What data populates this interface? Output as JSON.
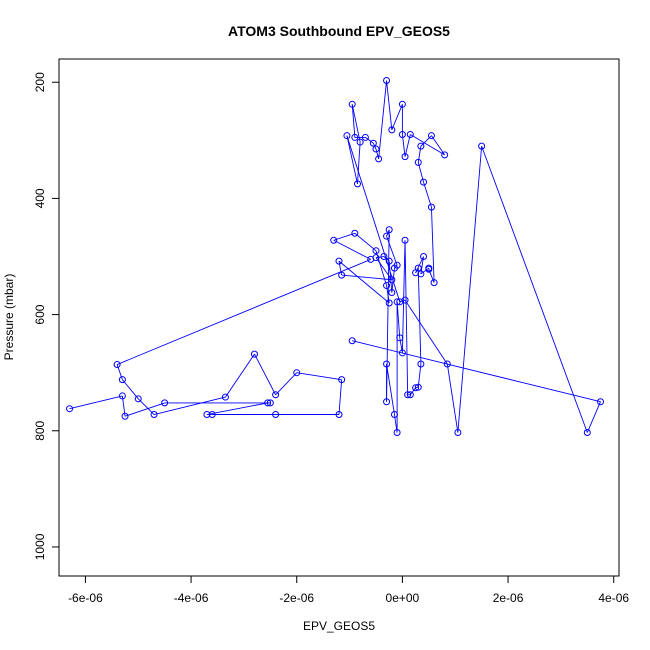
{
  "chart_data": {
    "type": "line",
    "title": "ATOM3 Southbound EPV_GEOS5",
    "xlabel": "EPV_GEOS5",
    "ylabel": "Pressure (mbar)",
    "xlim": [
      -6.5e-06,
      4.1e-06
    ],
    "ylim": [
      1050,
      160
    ],
    "y_reversed": true,
    "x_ticks": [
      -6e-06,
      -4e-06,
      -2e-06,
      0,
      2e-06,
      4e-06
    ],
    "x_tick_labels": [
      "-6e-06",
      "-4e-06",
      "-2e-06",
      "0e+00",
      "2e-06",
      "4e-06"
    ],
    "y_ticks": [
      200,
      400,
      600,
      800,
      1000
    ],
    "y_tick_labels": [
      "200",
      "400",
      "600",
      "800",
      "1000"
    ],
    "series": [
      {
        "color": "#0000ff",
        "marker": "open-circle",
        "points": [
          [
            -6.3e-06,
            762
          ],
          [
            -5.3e-06,
            740
          ],
          [
            -5.25e-06,
            775
          ],
          [
            -4.5e-06,
            752
          ],
          [
            -2.5e-06,
            752
          ],
          [
            -2.55e-06,
            752
          ],
          [
            -3.7e-06,
            772
          ],
          [
            -3.6e-06,
            772
          ],
          [
            -2.4e-06,
            772
          ],
          [
            -1.2e-06,
            772
          ],
          [
            -1.15e-06,
            712
          ],
          [
            -2e-06,
            700
          ],
          [
            -2.4e-06,
            738
          ],
          [
            -2.8e-06,
            668
          ],
          [
            -3.35e-06,
            742
          ],
          [
            -4.7e-06,
            772
          ],
          [
            -5e-06,
            745
          ],
          [
            -5.3e-06,
            712
          ],
          [
            -5.4e-06,
            686
          ],
          [
            -6e-07,
            505
          ],
          [
            -1.3e-06,
            472
          ],
          [
            -9e-07,
            460
          ],
          [
            -5e-07,
            490
          ],
          [
            -3e-07,
            550
          ],
          [
            -2.5e-07,
            580
          ],
          [
            -1.2e-06,
            508
          ],
          [
            -1.15e-06,
            532
          ],
          [
            -2e-07,
            540
          ],
          [
            -5e-07,
            502
          ],
          [
            -3.5e-07,
            500
          ],
          [
            -2.5e-07,
            508
          ],
          [
            -2e-07,
            562
          ],
          [
            -1.5e-07,
            520
          ],
          [
            -1e-07,
            515
          ],
          [
            -3e-07,
            465
          ],
          [
            -2.5e-07,
            454
          ],
          [
            -3e-07,
            750
          ],
          [
            -3e-07,
            685
          ],
          [
            -1.5e-07,
            772
          ],
          [
            -1e-07,
            803
          ],
          [
            -1e-07,
            578
          ],
          [
            -5e-08,
            640
          ],
          [
            0.0,
            666
          ],
          [
            5e-08,
            472
          ],
          [
            1e-07,
            738
          ],
          [
            1.5e-07,
            738
          ],
          [
            2.5e-07,
            726
          ],
          [
            3e-07,
            725
          ],
          [
            3.5e-07,
            685
          ],
          [
            3e-07,
            520
          ],
          [
            2.5e-07,
            528
          ],
          [
            4e-07,
            500
          ],
          [
            3.5e-07,
            530
          ],
          [
            5e-07,
            520
          ],
          [
            5e-07,
            522
          ],
          [
            6e-07,
            545
          ],
          [
            5.5e-07,
            415
          ],
          [
            4e-07,
            372
          ],
          [
            3e-07,
            338
          ],
          [
            3.5e-07,
            310
          ],
          [
            5.5e-07,
            292
          ],
          [
            8e-07,
            325
          ],
          [
            1.5e-07,
            290
          ],
          [
            5e-08,
            328
          ],
          [
            0.0,
            290
          ],
          [
            0.0,
            238
          ],
          [
            -2e-07,
            282
          ],
          [
            -3e-07,
            197
          ],
          [
            -4.5e-07,
            332
          ],
          [
            -5e-07,
            315
          ],
          [
            -5.5e-07,
            305
          ],
          [
            -7e-07,
            295
          ],
          [
            -9e-07,
            295
          ],
          [
            -9.5e-07,
            238
          ],
          [
            -8e-07,
            303
          ],
          [
            -8.5e-07,
            375
          ],
          [
            -1.05e-06,
            292
          ],
          [
            -5e-08,
            578
          ],
          [
            5e-08,
            575
          ],
          [
            8.5e-07,
            685
          ],
          [
            1.05e-06,
            803
          ],
          [
            1.5e-06,
            310
          ],
          [
            3.5e-06,
            803
          ],
          [
            3.75e-06,
            750
          ],
          [
            -9.5e-07,
            645
          ]
        ]
      }
    ]
  }
}
